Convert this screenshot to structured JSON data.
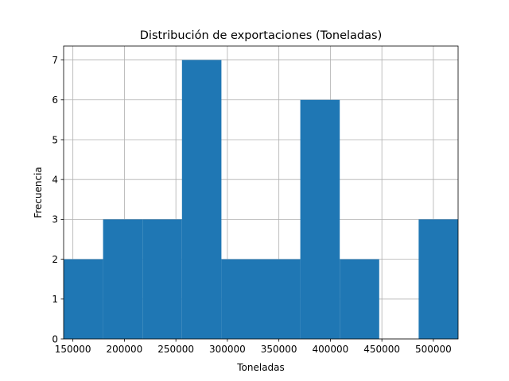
{
  "chart_data": {
    "type": "bar",
    "title": "Distribución de exportaciones (Toneladas)",
    "xlabel": "Toneladas",
    "ylabel": "Frecuencia",
    "xlim": [
      141000,
      524000
    ],
    "ylim": [
      0,
      7.35
    ],
    "xticks": [
      150000,
      200000,
      250000,
      300000,
      350000,
      400000,
      450000,
      500000
    ],
    "yticks": [
      0,
      1,
      2,
      3,
      4,
      5,
      6,
      7
    ],
    "grid": true,
    "legend": "none",
    "bar_color": "#1f77b4",
    "bins": [
      {
        "x0": 141000,
        "x1": 179300,
        "count": 2
      },
      {
        "x0": 179300,
        "x1": 217600,
        "count": 3
      },
      {
        "x0": 217600,
        "x1": 255900,
        "count": 3
      },
      {
        "x0": 255900,
        "x1": 294200,
        "count": 7
      },
      {
        "x0": 294200,
        "x1": 332500,
        "count": 2
      },
      {
        "x0": 332500,
        "x1": 370800,
        "count": 2
      },
      {
        "x0": 370800,
        "x1": 409100,
        "count": 6
      },
      {
        "x0": 409100,
        "x1": 447400,
        "count": 2
      },
      {
        "x0": 447400,
        "x1": 485700,
        "count": 0
      },
      {
        "x0": 485700,
        "x1": 524000,
        "count": 3
      }
    ]
  }
}
